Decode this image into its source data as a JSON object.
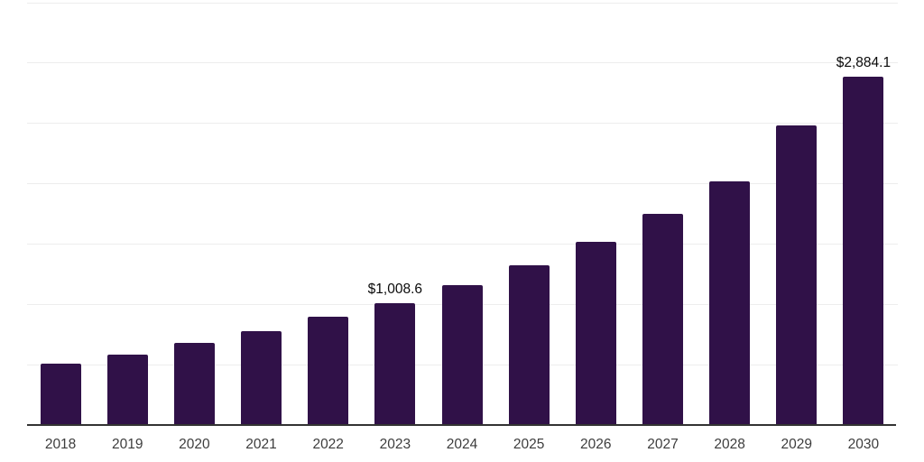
{
  "chart_data": {
    "type": "bar",
    "title": "",
    "xlabel": "",
    "ylabel": "",
    "categories": [
      "2018",
      "2019",
      "2020",
      "2021",
      "2022",
      "2023",
      "2024",
      "2025",
      "2026",
      "2027",
      "2028",
      "2029",
      "2030"
    ],
    "values": [
      510,
      580,
      680,
      780,
      895,
      1008.6,
      1155,
      1320,
      1515,
      1750,
      2015,
      2480,
      2884.1
    ],
    "data_labels": {
      "2023": "$1,008.6",
      "2030": "$2,884.1"
    },
    "ylim": [
      0,
      3500
    ],
    "gridline_step": 500,
    "grid": true,
    "legend": "none",
    "y_tick_labels": [],
    "colors": {
      "bar": "#301148",
      "axis_line": "#333333",
      "gridline": "#ededed",
      "tick_label": "#3d3d3d",
      "data_label": "#0a0a0a",
      "background": "#ffffff"
    }
  }
}
